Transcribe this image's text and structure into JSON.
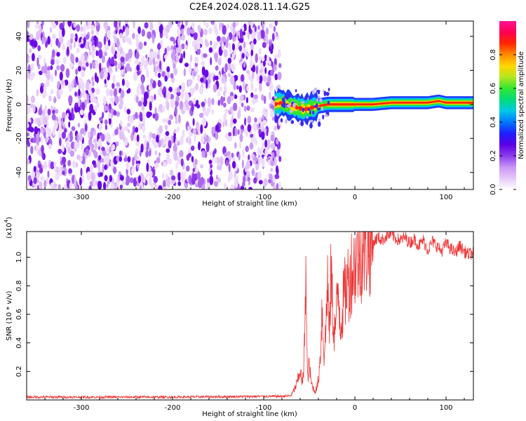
{
  "title": "C2E4.2024.028.11.14.G25",
  "chart_data": [
    {
      "type": "heatmap",
      "title": "C2E4.2024.028.11.14.G25",
      "xlabel": "Height of straight line (km)",
      "ylabel": "Frequency (Hz)",
      "xlim": [
        -360,
        130
      ],
      "ylim": [
        -50,
        49
      ],
      "xticks": [
        -300,
        -200,
        -100,
        0,
        100
      ],
      "xtick_labels": [
        "-300",
        "-200",
        "-100",
        "0",
        "100"
      ],
      "yticks": [
        -40,
        -20,
        0,
        20,
        40
      ],
      "ytick_labels": [
        "-40",
        "-20",
        "0",
        "20",
        "40"
      ],
      "noise_region_x": [
        -360,
        -82
      ],
      "signal_start_x": -88,
      "signal_center_hz": [
        [
          -88,
          0
        ],
        [
          -80,
          1
        ],
        [
          -70,
          -1
        ],
        [
          -62,
          -2
        ],
        [
          -55,
          -3
        ],
        [
          -48,
          -2
        ],
        [
          -40,
          -1
        ],
        [
          -30,
          0
        ],
        [
          -20,
          0
        ],
        [
          -10,
          0
        ],
        [
          0,
          0
        ],
        [
          10,
          0
        ],
        [
          20,
          0
        ],
        [
          40,
          1
        ],
        [
          60,
          1
        ],
        [
          80,
          1
        ],
        [
          92,
          2
        ],
        [
          100,
          1
        ],
        [
          130,
          1
        ]
      ],
      "colorbar": {
        "label": "Normalized spectral amplitude",
        "range": [
          0.0,
          1.0
        ],
        "ticks": [
          0.0,
          0.2,
          0.4,
          0.6,
          0.8
        ],
        "tick_labels": [
          "0.0",
          "0.2",
          "0.4",
          "0.6",
          "0.8"
        ],
        "colors": [
          "#ffffff",
          "#e6c8fa",
          "#c896f5",
          "#8c3ced",
          "#5a00e6",
          "#1e1eff",
          "#0078ff",
          "#00c8e6",
          "#00dc78",
          "#32e632",
          "#b4e61e",
          "#ffd700",
          "#ff8c00",
          "#ff2800",
          "#ff0050",
          "#ff1493"
        ]
      }
    },
    {
      "type": "line",
      "xlabel": "Height of straight line (km)",
      "ylabel": "SNR (10 * v/v)",
      "scale_label": "(x10",
      "scale_exponent": "4",
      "xlim": [
        -360,
        130
      ],
      "ylim": [
        0,
        11800
      ],
      "xticks": [
        -300,
        -200,
        -100,
        0,
        100
      ],
      "xtick_labels": [
        "-300",
        "-200",
        "-100",
        "0",
        "100"
      ],
      "yticks": [
        2000,
        4000,
        6000,
        8000,
        10000
      ],
      "ytick_labels": [
        "0.2",
        "0.4",
        "0.6",
        "0.8",
        "1.0"
      ],
      "color": "#ee3333",
      "series": [
        {
          "name": "SNR",
          "x": [
            -360,
            -300,
            -200,
            -100,
            -80,
            -70,
            -65,
            -62,
            -60,
            -58,
            -56,
            -54,
            -52,
            -50,
            -48,
            -46,
            -44,
            -42,
            -40,
            -38,
            -36,
            -34,
            -32,
            -30,
            -28,
            -26,
            -24,
            -22,
            -20,
            -18,
            -16,
            -14,
            -12,
            -10,
            -8,
            -6,
            -4,
            -2,
            0,
            5,
            10,
            15,
            20,
            25,
            30,
            35,
            40,
            45,
            50,
            55,
            60,
            65,
            70,
            75,
            80,
            85,
            90,
            95,
            100,
            105,
            110,
            115,
            120,
            125,
            130
          ],
          "y": [
            200,
            200,
            200,
            250,
            250,
            300,
            900,
            1500,
            2200,
            1200,
            1800,
            9500,
            1500,
            2500,
            1200,
            900,
            600,
            800,
            1400,
            3000,
            6500,
            3200,
            4500,
            8800,
            4200,
            9300,
            5500,
            4800,
            6200,
            7800,
            5400,
            6000,
            7300,
            7600,
            8400,
            8100,
            9200,
            9000,
            9600,
            10100,
            10500,
            10900,
            11000,
            11400,
            11200,
            11500,
            11600,
            11300,
            11200,
            11400,
            11000,
            11300,
            10800,
            11200,
            10500,
            11100,
            10800,
            10400,
            11000,
            10600,
            10300,
            10800,
            10400,
            10200,
            10300
          ]
        }
      ]
    }
  ]
}
